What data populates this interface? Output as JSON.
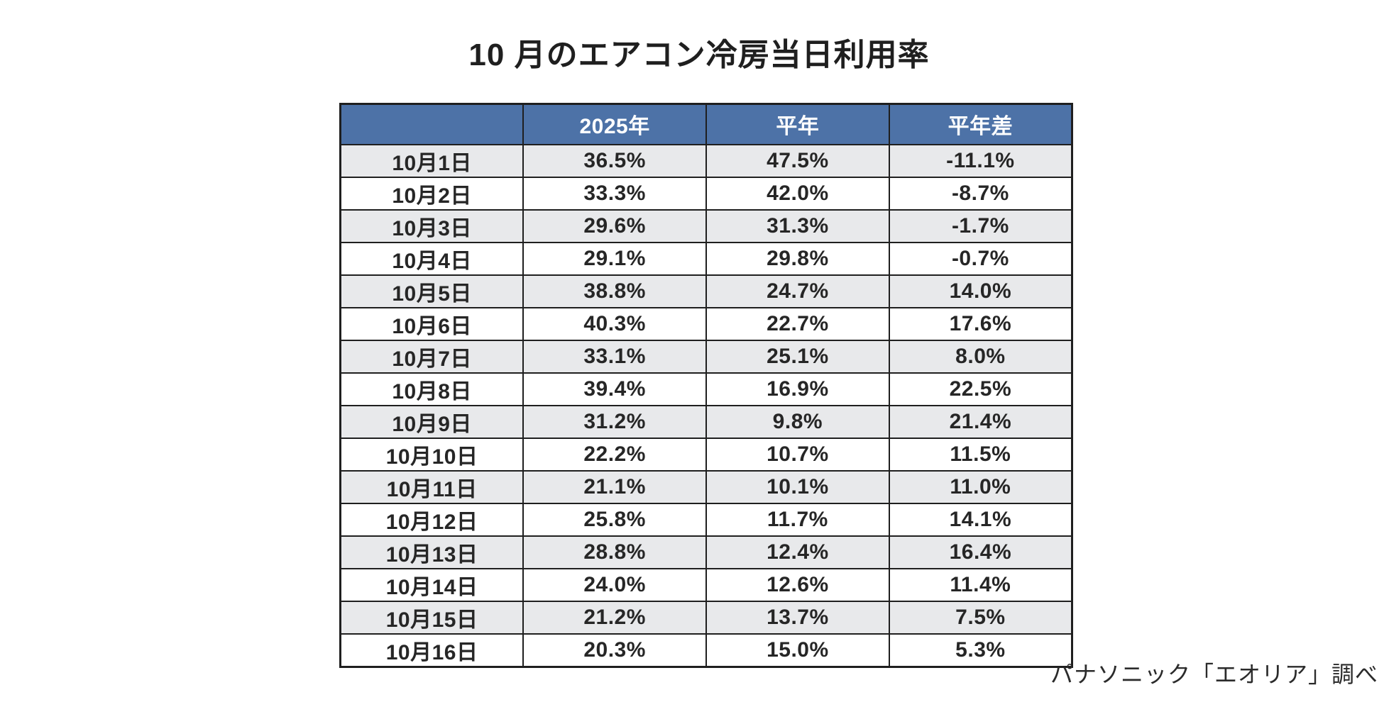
{
  "title": "10 月のエアコン冷房当日利用率",
  "source_note": "パナソニック「エオリア」調べ",
  "colors": {
    "page_bg": "#ffffff",
    "title_text": "#1f1f1f",
    "header_bg": "#4d72a7",
    "header_text": "#ffffff",
    "row_bg": "#ffffff",
    "row_alt_bg": "#e8e9eb",
    "cell_text": "#262626",
    "border": "#1f1f1f",
    "note_text": "#2b2b2b"
  },
  "chart_data": {
    "type": "table",
    "title": "10 月のエアコン冷房当日利用率",
    "columns": [
      "",
      "2025年",
      "平年",
      "平年差"
    ],
    "rows": [
      [
        "10月1日",
        "36.5%",
        "47.5%",
        "-11.1%"
      ],
      [
        "10月2日",
        "33.3%",
        "42.0%",
        "-8.7%"
      ],
      [
        "10月3日",
        "29.6%",
        "31.3%",
        "-1.7%"
      ],
      [
        "10月4日",
        "29.1%",
        "29.8%",
        "-0.7%"
      ],
      [
        "10月5日",
        "38.8%",
        "24.7%",
        "14.0%"
      ],
      [
        "10月6日",
        "40.3%",
        "22.7%",
        "17.6%"
      ],
      [
        "10月7日",
        "33.1%",
        "25.1%",
        "8.0%"
      ],
      [
        "10月8日",
        "39.4%",
        "16.9%",
        "22.5%"
      ],
      [
        "10月9日",
        "31.2%",
        "9.8%",
        "21.4%"
      ],
      [
        "10月10日",
        "22.2%",
        "10.7%",
        "11.5%"
      ],
      [
        "10月11日",
        "21.1%",
        "10.1%",
        "11.0%"
      ],
      [
        "10月12日",
        "25.8%",
        "11.7%",
        "14.1%"
      ],
      [
        "10月13日",
        "28.8%",
        "12.4%",
        "16.4%"
      ],
      [
        "10月14日",
        "24.0%",
        "12.6%",
        "11.4%"
      ],
      [
        "10月15日",
        "21.2%",
        "13.7%",
        "7.5%"
      ],
      [
        "10月16日",
        "20.3%",
        "15.0%",
        "5.3%"
      ]
    ],
    "notes": {
      "row_striping": "odd rows light gray, even rows white",
      "units": "percent"
    }
  }
}
